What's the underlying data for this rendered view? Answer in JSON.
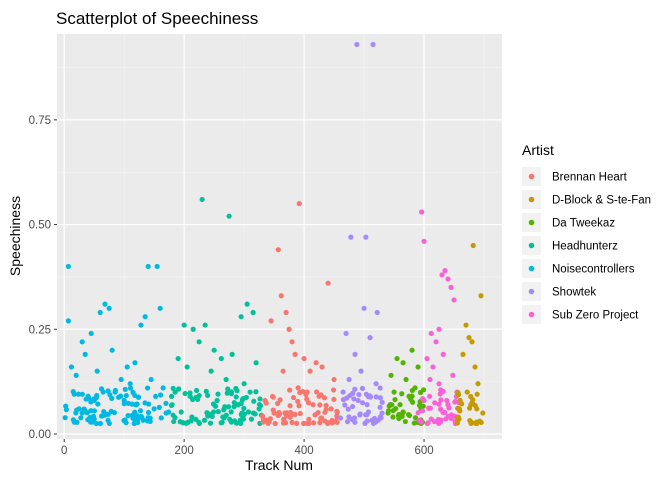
{
  "chart_data": {
    "type": "scatter",
    "title": "Scatterplot of Speechiness",
    "xlabel": "Track Num",
    "ylabel": "Speechiness",
    "xlim": [
      -12,
      730
    ],
    "ylim": [
      -0.012,
      0.955
    ],
    "x_ticks": [
      0,
      200,
      400,
      600
    ],
    "x_tick_labels": [
      "0",
      "200",
      "400",
      "600"
    ],
    "y_ticks": [
      0.0,
      0.25,
      0.5,
      0.75
    ],
    "y_tick_labels": [
      "0.00",
      "0.25",
      "0.50",
      "0.75"
    ],
    "grid": true,
    "background": "#ebebeb",
    "legend": {
      "title": "Artist",
      "position": "right"
    },
    "series": [
      {
        "name": "Noisecontrollers",
        "color": "#00B9E3",
        "range": [
          0,
          175
        ],
        "points": [
          [
            7,
            0.4
          ],
          [
            7,
            0.27
          ],
          [
            140,
            0.4
          ],
          [
            155,
            0.4
          ],
          [
            68,
            0.31
          ],
          [
            60,
            0.29
          ],
          [
            75,
            0.3
          ],
          [
            45,
            0.24
          ],
          [
            30,
            0.22
          ],
          [
            35,
            0.19
          ],
          [
            80,
            0.2
          ],
          [
            128,
            0.26
          ],
          [
            135,
            0.28
          ],
          [
            160,
            0.3
          ],
          [
            12,
            0.16
          ],
          [
            105,
            0.16
          ],
          [
            118,
            0.17
          ],
          [
            95,
            0.13
          ],
          [
            20,
            0.14
          ],
          [
            55,
            0.15
          ],
          [
            85,
            0.1
          ],
          [
            50,
            0.08
          ],
          [
            65,
            0.1
          ],
          [
            110,
            0.12
          ],
          [
            145,
            0.13
          ],
          [
            165,
            0.11
          ],
          [
            40,
            0.09
          ],
          [
            25,
            0.06
          ],
          [
            30,
            0.05
          ],
          [
            100,
            0.08
          ],
          [
            120,
            0.07
          ],
          [
            150,
            0.06
          ],
          [
            170,
            0.05
          ]
        ]
      },
      {
        "name": "Headhunterz",
        "color": "#00C19A",
        "range": [
          175,
          330
        ],
        "points": [
          [
            230,
            0.56
          ],
          [
            275,
            0.52
          ],
          [
            295,
            0.28
          ],
          [
            305,
            0.31
          ],
          [
            315,
            0.29
          ],
          [
            200,
            0.26
          ],
          [
            215,
            0.25
          ],
          [
            225,
            0.22
          ],
          [
            235,
            0.26
          ],
          [
            250,
            0.2
          ],
          [
            262,
            0.18
          ],
          [
            190,
            0.18
          ],
          [
            205,
            0.16
          ],
          [
            280,
            0.19
          ],
          [
            320,
            0.17
          ],
          [
            245,
            0.15
          ],
          [
            270,
            0.13
          ],
          [
            300,
            0.12
          ],
          [
            310,
            0.1
          ],
          [
            185,
            0.1
          ],
          [
            210,
            0.09
          ],
          [
            255,
            0.08
          ],
          [
            290,
            0.07
          ],
          [
            325,
            0.06
          ]
        ]
      },
      {
        "name": "Brennan Heart",
        "color": "#F8766D",
        "range": [
          330,
          460
        ],
        "points": [
          [
            392,
            0.55
          ],
          [
            357,
            0.44
          ],
          [
            362,
            0.33
          ],
          [
            345,
            0.27
          ],
          [
            370,
            0.29
          ],
          [
            380,
            0.22
          ],
          [
            375,
            0.25
          ],
          [
            440,
            0.36
          ],
          [
            385,
            0.19
          ],
          [
            400,
            0.18
          ],
          [
            410,
            0.15
          ],
          [
            420,
            0.17
          ],
          [
            430,
            0.16
          ],
          [
            450,
            0.13
          ],
          [
            365,
            0.15
          ],
          [
            390,
            0.11
          ],
          [
            405,
            0.1
          ],
          [
            425,
            0.09
          ],
          [
            335,
            0.08
          ],
          [
            350,
            0.05
          ],
          [
            415,
            0.07
          ],
          [
            445,
            0.06
          ],
          [
            455,
            0.04
          ]
        ]
      },
      {
        "name": "Showtek",
        "color": "#A58AFF",
        "range": [
          460,
          535
        ],
        "points": [
          [
            488,
            0.93
          ],
          [
            515,
            0.93
          ],
          [
            478,
            0.47
          ],
          [
            503,
            0.47
          ],
          [
            500,
            0.3
          ],
          [
            522,
            0.29
          ],
          [
            470,
            0.24
          ],
          [
            510,
            0.23
          ],
          [
            485,
            0.19
          ],
          [
            495,
            0.15
          ],
          [
            475,
            0.13
          ],
          [
            520,
            0.12
          ],
          [
            465,
            0.1
          ],
          [
            490,
            0.08
          ],
          [
            505,
            0.07
          ],
          [
            530,
            0.05
          ]
        ]
      },
      {
        "name": "Da Tweekaz",
        "color": "#53B400",
        "range": [
          535,
          600
        ],
        "points": [
          [
            580,
            0.2
          ],
          [
            555,
            0.18
          ],
          [
            565,
            0.17
          ],
          [
            590,
            0.16
          ],
          [
            545,
            0.14
          ],
          [
            570,
            0.13
          ],
          [
            585,
            0.11
          ],
          [
            550,
            0.1
          ],
          [
            575,
            0.09
          ],
          [
            560,
            0.07
          ],
          [
            595,
            0.06
          ],
          [
            540,
            0.05
          ]
        ]
      },
      {
        "name": "Sub Zero Project",
        "color": "#FB61D7",
        "range": [
          590,
          660
        ],
        "points": [
          [
            596,
            0.53
          ],
          [
            600,
            0.46
          ],
          [
            630,
            0.38
          ],
          [
            635,
            0.39
          ],
          [
            640,
            0.37
          ],
          [
            645,
            0.35
          ],
          [
            650,
            0.32
          ],
          [
            612,
            0.24
          ],
          [
            625,
            0.25
          ],
          [
            620,
            0.22
          ],
          [
            605,
            0.18
          ],
          [
            615,
            0.16
          ],
          [
            632,
            0.19
          ],
          [
            648,
            0.14
          ],
          [
            610,
            0.13
          ],
          [
            625,
            0.12
          ],
          [
            655,
            0.1
          ],
          [
            600,
            0.08
          ],
          [
            640,
            0.07
          ]
        ]
      },
      {
        "name": "D-Block & S-te-Fan",
        "color": "#C49A00",
        "range": [
          655,
          700
        ],
        "points": [
          [
            682,
            0.45
          ],
          [
            695,
            0.33
          ],
          [
            670,
            0.26
          ],
          [
            675,
            0.23
          ],
          [
            680,
            0.22
          ],
          [
            665,
            0.19
          ],
          [
            685,
            0.16
          ],
          [
            690,
            0.12
          ],
          [
            672,
            0.1
          ],
          [
            660,
            0.08
          ],
          [
            678,
            0.07
          ],
          [
            688,
            0.06
          ],
          [
            698,
            0.05
          ]
        ]
      }
    ]
  }
}
